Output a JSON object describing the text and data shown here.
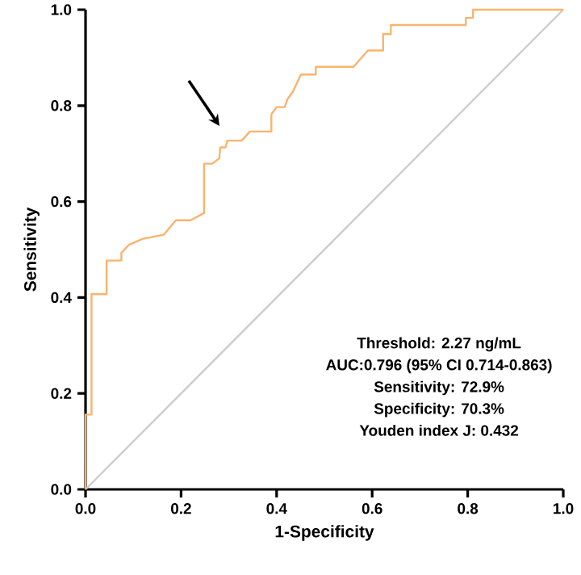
{
  "chart_data": {
    "type": "line",
    "xlabel": "1-Specificity",
    "ylabel": "Sensitivity",
    "xlim": [
      0,
      1
    ],
    "ylim": [
      0,
      1
    ],
    "xticks": [
      {
        "value": 0,
        "label": "0.0"
      },
      {
        "value": 0.2,
        "label": "0.2"
      },
      {
        "value": 0.4,
        "label": "0.4"
      },
      {
        "value": 0.6,
        "label": "0.6"
      },
      {
        "value": 0.8,
        "label": "0.8"
      },
      {
        "value": 1,
        "label": "1.0"
      }
    ],
    "yticks": [
      {
        "value": 0,
        "label": "0.0"
      },
      {
        "value": 0.2,
        "label": "0.2"
      },
      {
        "value": 0.4,
        "label": "0.4"
      },
      {
        "value": 0.6,
        "label": "0.6"
      },
      {
        "value": 0.8,
        "label": "0.8"
      },
      {
        "value": 1,
        "label": "1.0"
      }
    ],
    "grid": false,
    "marker": "none",
    "series": [
      {
        "color": "#f9b46e",
        "x": [
          0,
          0,
          0.0125,
          0.0125,
          0.026,
          0.044,
          0.044,
          0.075,
          0.075,
          0.091,
          0.119,
          0.164,
          0.189,
          0.22,
          0.248,
          0.248,
          0.265,
          0.28,
          0.282,
          0.293,
          0.297,
          0.327,
          0.344,
          0.389,
          0.389,
          0.4,
          0.417,
          0.423,
          0.434,
          0.451,
          0.482,
          0.482,
          0.561,
          0.591,
          0.623,
          0.623,
          0.639,
          0.639,
          0.796,
          0.796,
          0.811,
          0.811,
          1.0
        ],
        "values": [
          0,
          0.156,
          0.156,
          0.407,
          0.407,
          0.407,
          0.477,
          0.477,
          0.493,
          0.51,
          0.522,
          0.531,
          0.561,
          0.561,
          0.576,
          0.679,
          0.679,
          0.69,
          0.713,
          0.713,
          0.727,
          0.727,
          0.746,
          0.746,
          0.782,
          0.797,
          0.797,
          0.814,
          0.829,
          0.865,
          0.865,
          0.881,
          0.881,
          0.915,
          0.915,
          0.949,
          0.949,
          0.968,
          0.968,
          0.983,
          0.983,
          1.0,
          1.0
        ]
      },
      {
        "color": "#cccccc",
        "x": [
          0,
          1
        ],
        "values": [
          0,
          1
        ]
      }
    ],
    "annotations": [
      "Threshold: 2.27 ng/mL",
      "AUC:0.796 (95% CI 0.714-0.863)",
      "Sensitivity: 72.9%",
      "Specificity: 70.3%",
      "Youden index J: 0.432"
    ]
  }
}
